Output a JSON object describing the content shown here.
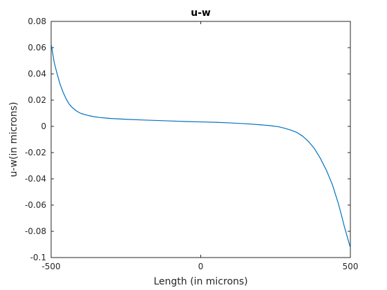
{
  "chart_data": {
    "type": "line",
    "title": "u-w",
    "xlabel": "Length (in microns)",
    "ylabel": "u-w(in microns)",
    "xlim": [
      -500,
      500
    ],
    "ylim": [
      -0.1,
      0.08
    ],
    "xticks": [
      -500,
      0,
      500
    ],
    "xtick_labels": [
      "-500",
      "0",
      "500"
    ],
    "yticks": [
      -0.1,
      -0.08,
      -0.06,
      -0.04,
      -0.02,
      0,
      0.02,
      0.04,
      0.06,
      0.08
    ],
    "ytick_labels": [
      "-0.1",
      "-0.08",
      "-0.06",
      "-0.04",
      "-0.02",
      "0",
      "0.02",
      "0.04",
      "0.06",
      "0.08"
    ],
    "grid": false,
    "series": [
      {
        "color": "#0072bd",
        "x": [
          -500,
          -490,
          -480,
          -470,
          -460,
          -450,
          -440,
          -430,
          -420,
          -410,
          -400,
          -380,
          -360,
          -340,
          -320,
          -300,
          -250,
          -200,
          -150,
          -100,
          -50,
          0,
          50,
          100,
          150,
          200,
          230,
          260,
          280,
          300,
          320,
          340,
          360,
          380,
          400,
          420,
          440,
          460,
          470,
          480,
          490,
          500
        ],
        "y": [
          0.063,
          0.049,
          0.04,
          0.032,
          0.026,
          0.021,
          0.017,
          0.0145,
          0.0125,
          0.011,
          0.0098,
          0.0085,
          0.0075,
          0.0068,
          0.0064,
          0.006,
          0.0054,
          0.0049,
          0.0045,
          0.0041,
          0.0037,
          0.0034,
          0.0031,
          0.0026,
          0.002,
          0.0012,
          0.0006,
          -0.0003,
          -0.0014,
          -0.0028,
          -0.0045,
          -0.0074,
          -0.0115,
          -0.017,
          -0.0245,
          -0.0335,
          -0.0445,
          -0.059,
          -0.0675,
          -0.0765,
          -0.0845,
          -0.0925
        ]
      }
    ]
  }
}
